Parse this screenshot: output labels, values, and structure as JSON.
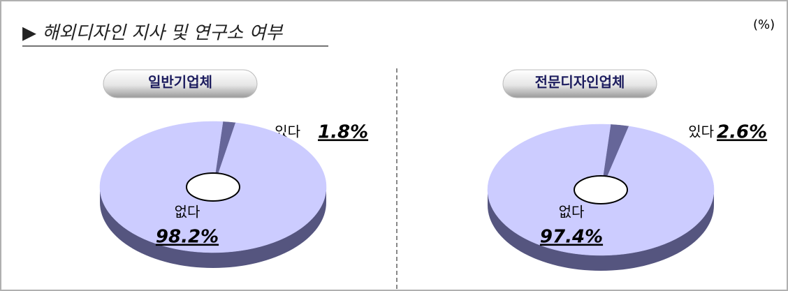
{
  "title": "▶ 해외디자인 지사 및 연구소 여부",
  "unit": "(%)",
  "chart_data": [
    {
      "type": "pie",
      "title": "일반기업체",
      "categories": [
        "있다",
        "없다"
      ],
      "values": [
        1.8,
        98.2
      ],
      "value_labels": [
        "1.8%",
        "98.2%"
      ],
      "colors": [
        "#666699",
        "#ccccff"
      ]
    },
    {
      "type": "pie",
      "title": "전문디자인업체",
      "categories": [
        "있다",
        "없다"
      ],
      "values": [
        2.6,
        97.4
      ],
      "value_labels": [
        "2.6%",
        "97.4%"
      ],
      "colors": [
        "#666699",
        "#ccccff"
      ]
    }
  ]
}
